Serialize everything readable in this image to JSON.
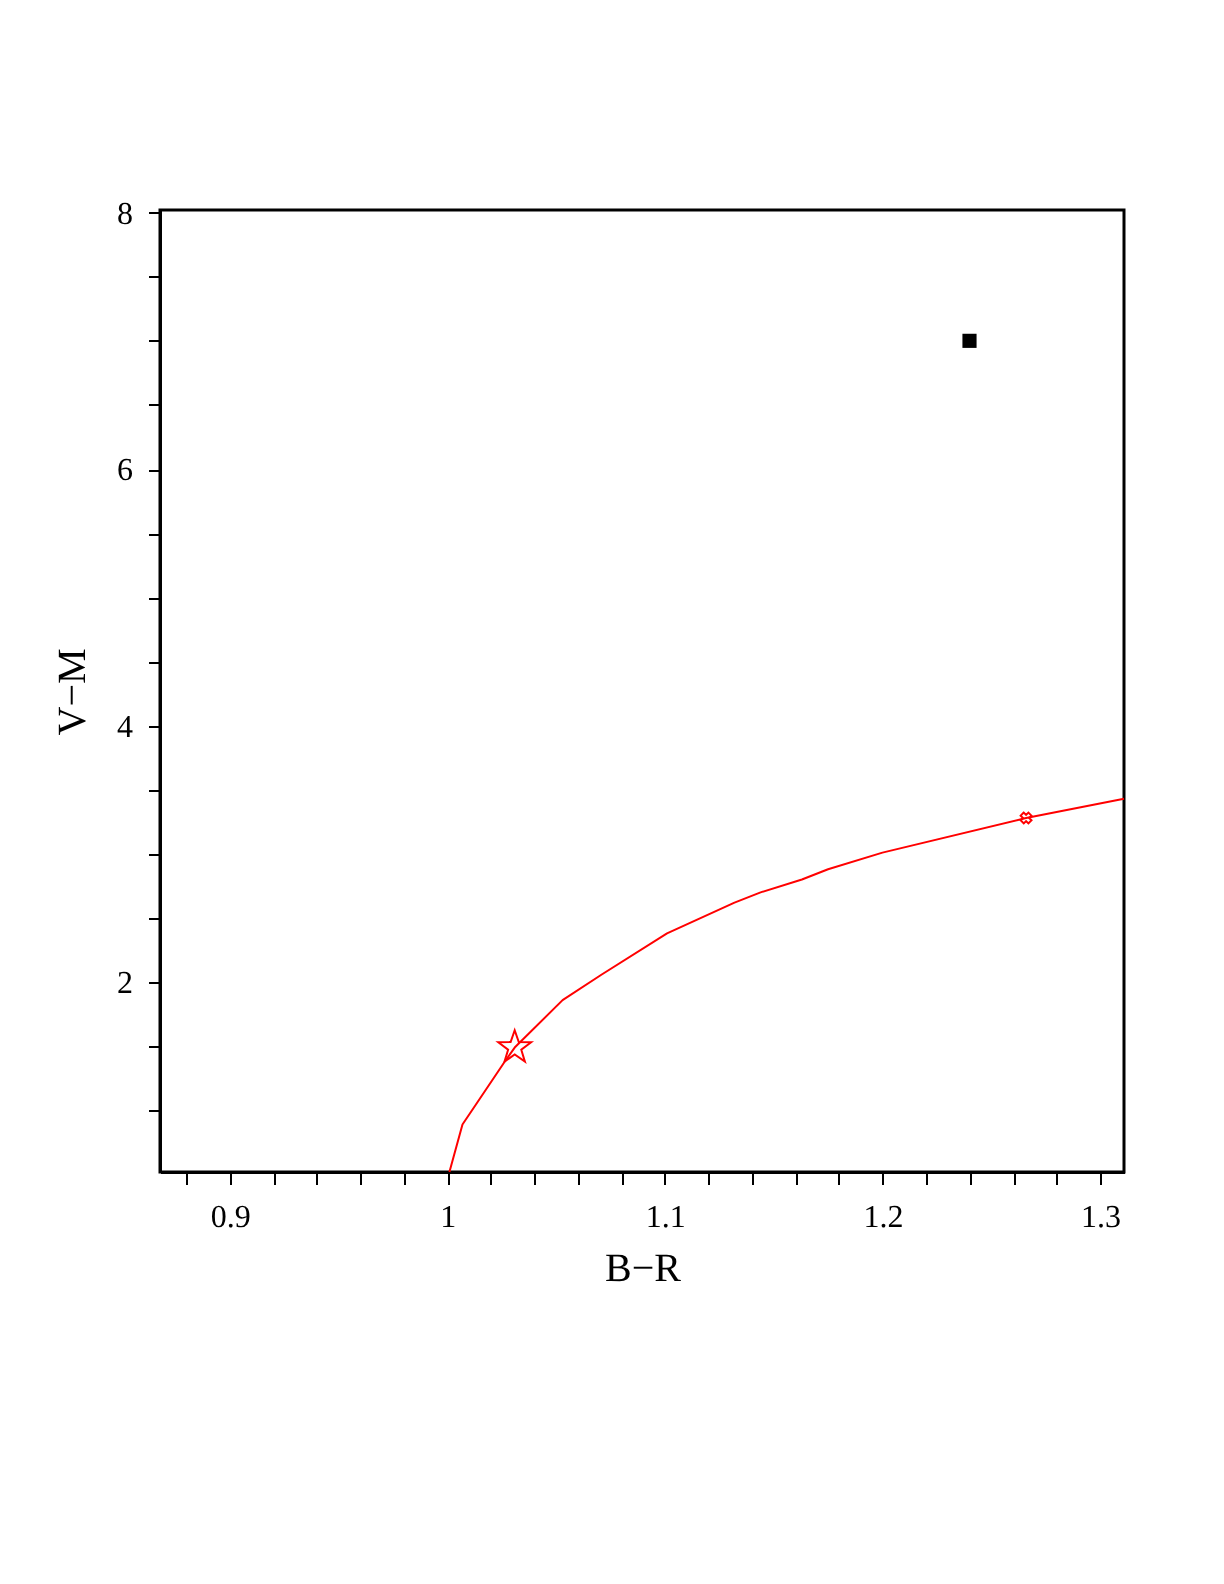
{
  "chart_data": {
    "type": "line",
    "xlabel": "B−R",
    "ylabel": "V−M",
    "xlim": [
      0.868,
      1.311
    ],
    "ylim": [
      0.52,
      8.02
    ],
    "xticks": [
      {
        "value": 0.88,
        "label": null
      },
      0.9,
      {
        "value": 0.92,
        "label": null
      },
      {
        "value": 0.94,
        "label": null
      },
      {
        "value": 0.96,
        "label": null
      },
      {
        "value": 0.98,
        "label": null
      },
      1,
      {
        "value": 1.02,
        "label": null
      },
      {
        "value": 1.04,
        "label": null
      },
      {
        "value": 1.06,
        "label": null
      },
      {
        "value": 1.08,
        "label": null
      },
      1.1,
      {
        "value": 1.12,
        "label": null
      },
      {
        "value": 1.14,
        "label": null
      },
      {
        "value": 1.16,
        "label": null
      },
      {
        "value": 1.18,
        "label": null
      },
      1.2,
      {
        "value": 1.22,
        "label": null
      },
      {
        "value": 1.24,
        "label": null
      },
      {
        "value": 1.26,
        "label": null
      },
      {
        "value": 1.28,
        "label": null
      },
      1.3
    ],
    "yticks": [
      {
        "value": 1,
        "label": null
      },
      {
        "value": 1.5,
        "label": null
      },
      2,
      {
        "value": 2.5,
        "label": null
      },
      {
        "value": 3,
        "label": null
      },
      {
        "value": 3.5,
        "label": null
      },
      4,
      {
        "value": 4.5,
        "label": null
      },
      {
        "value": 5,
        "label": null
      },
      {
        "value": 5.5,
        "label": null
      },
      6,
      {
        "value": 6.5,
        "label": null
      },
      {
        "value": 7,
        "label": null
      },
      {
        "value": 7.5,
        "label": null
      },
      8
    ],
    "grid": false,
    "series": [
      {
        "color": "#ff0000",
        "marker": "none",
        "line_style": "solid",
        "x": [
          1.001,
          1.007,
          1.026,
          1.031,
          1.053,
          1.071,
          1.101,
          1.132,
          1.144,
          1.163,
          1.175,
          1.2,
          1.266,
          1.311
        ],
        "values": [
          0.52,
          0.89,
          1.37,
          1.49,
          1.86,
          2.06,
          2.38,
          2.62,
          2.7,
          2.8,
          2.88,
          3.01,
          3.28,
          3.43
        ]
      },
      {
        "type": "scatter",
        "color": "#ff0000",
        "marker": "star",
        "x": [
          1.031
        ],
        "values": [
          1.49
        ]
      },
      {
        "type": "scatter",
        "color": "#ff0000",
        "marker": "cross",
        "x": [
          1.266
        ],
        "values": [
          3.28
        ]
      },
      {
        "type": "scatter",
        "color": "#000000",
        "marker": "square",
        "x": [
          1.24
        ],
        "values": [
          7.0
        ]
      }
    ]
  }
}
